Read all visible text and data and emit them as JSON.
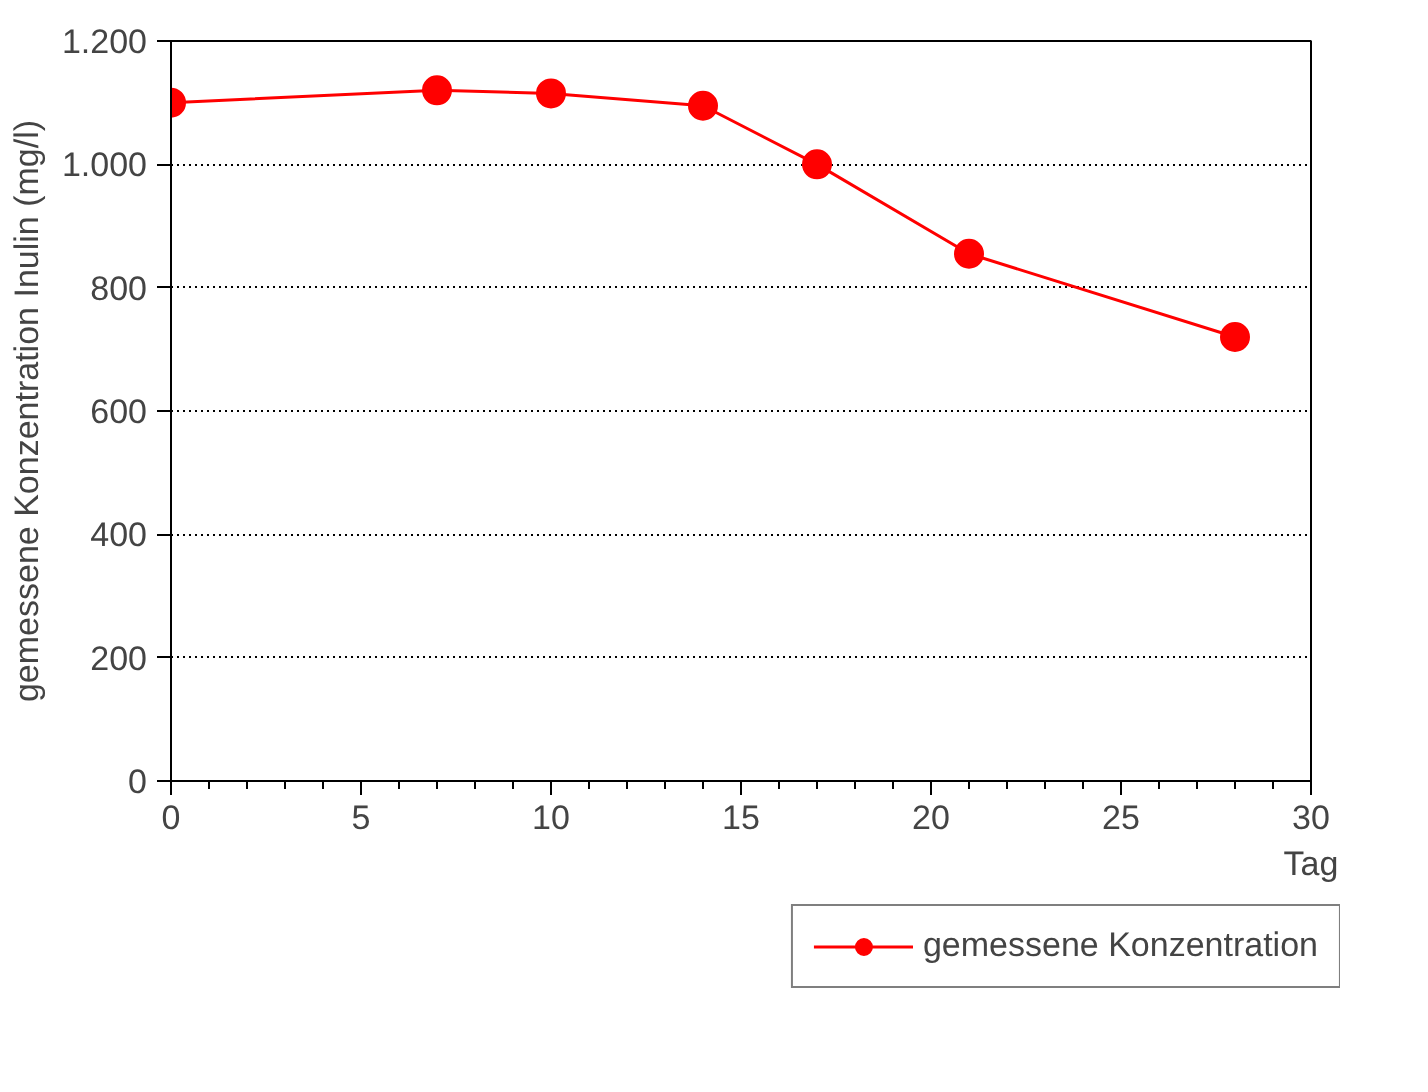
{
  "chart_data": {
    "type": "line",
    "xlabel": "Tag",
    "ylabel": "gemessene Konzentration Inulin (mg/l)",
    "x": [
      0,
      7,
      10,
      14,
      17,
      21,
      28
    ],
    "series": [
      {
        "name": "gemessene Konzentration",
        "color": "#ff0000",
        "values": [
          1100,
          1120,
          1115,
          1095,
          1000,
          855,
          720
        ]
      }
    ],
    "xlim": [
      0,
      30
    ],
    "xticks": [
      0,
      5,
      10,
      15,
      20,
      25,
      30
    ],
    "ylim": [
      0,
      1200
    ],
    "yticks": [
      0,
      200,
      400,
      600,
      800,
      {
        "value": 1000,
        "label": "1.000"
      },
      {
        "value": 1200,
        "label": "1.200"
      }
    ],
    "grid": "y",
    "legend": "bottom",
    "marker": "circle",
    "line_style": "solid"
  }
}
